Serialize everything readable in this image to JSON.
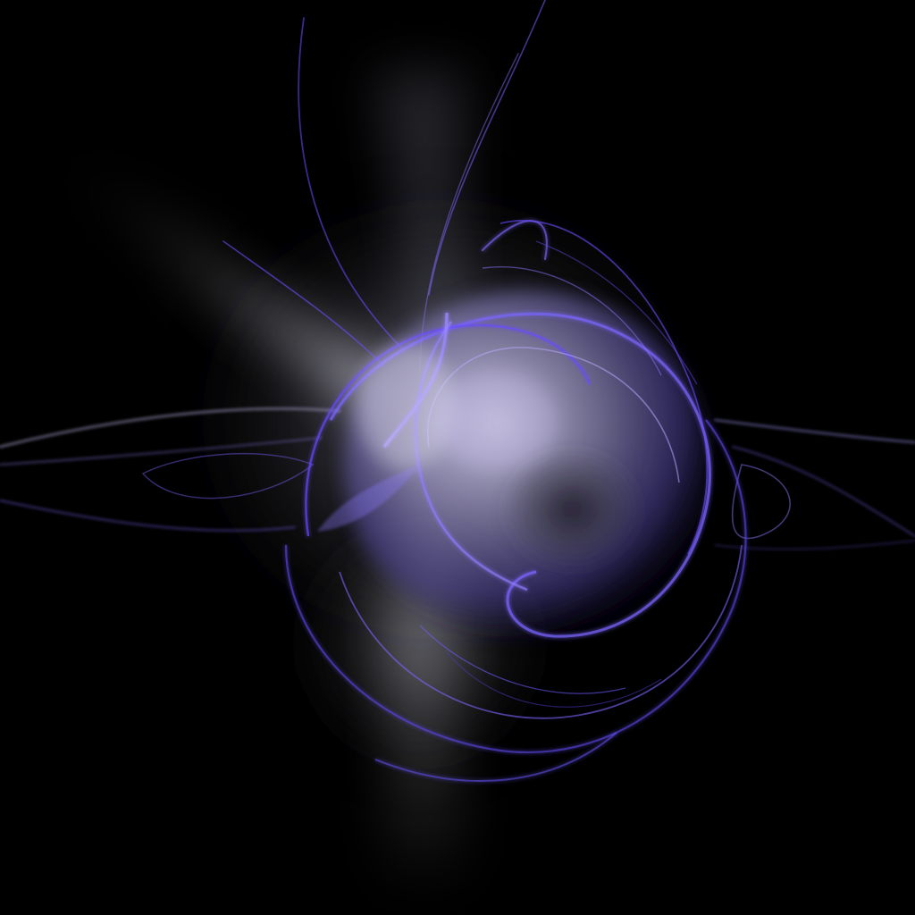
{
  "artwork": {
    "subject": "abstract-glowing-orb",
    "colors": {
      "background": "#000000",
      "glow_white": "#e8e8f4",
      "glow_soft": "#b4b0d8",
      "violet": "#6a4cff",
      "violet_light": "#9a86ff",
      "indigo_deep": "#3a2a9a",
      "grey_inner": "#3c3a48"
    }
  }
}
